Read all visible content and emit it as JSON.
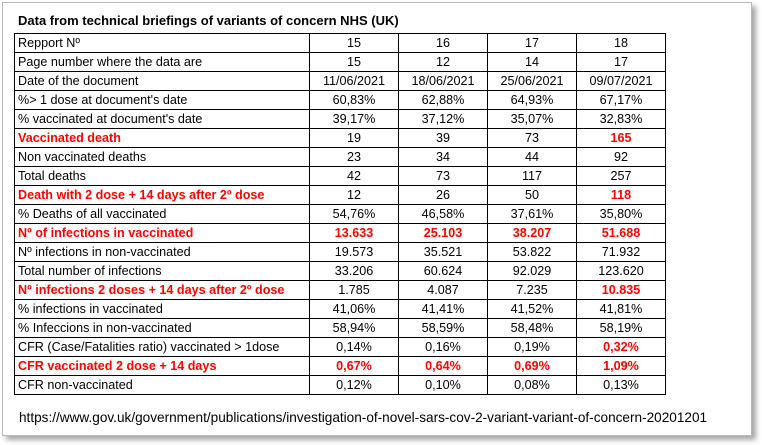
{
  "title": "Data from technical briefings of variants of concern NHS (UK)",
  "source": "https://www.gov.uk/government/publications/investigation-of-novel-sars-cov-2-variant-variant-of-concern-20201201",
  "rows": [
    {
      "label": "Repport Nº",
      "values": [
        "15",
        "16",
        "17",
        "18"
      ],
      "highlight": false,
      "red": []
    },
    {
      "label": "Page number where the data are",
      "values": [
        "15",
        "12",
        "14",
        "17"
      ],
      "highlight": false,
      "red": []
    },
    {
      "label": "Date of the document",
      "values": [
        "11/06/2021",
        "18/06/2021",
        "25/06/2021",
        "09/07/2021"
      ],
      "highlight": false,
      "red": []
    },
    {
      "label": "%> 1 dose at document's date",
      "values": [
        "60,83%",
        "62,88%",
        "64,93%",
        "67,17%"
      ],
      "highlight": false,
      "red": []
    },
    {
      "label": "% vaccinated at document's date",
      "values": [
        "39,17%",
        "37,12%",
        "35,07%",
        "32,83%"
      ],
      "highlight": false,
      "red": []
    },
    {
      "label": "Vaccinated death",
      "values": [
        "19",
        "39",
        "73",
        "165"
      ],
      "highlight": true,
      "red": [
        3
      ]
    },
    {
      "label": "Non vaccinated deaths",
      "values": [
        "23",
        "34",
        "44",
        "92"
      ],
      "highlight": false,
      "red": []
    },
    {
      "label": "Total deaths",
      "values": [
        "42",
        "73",
        "117",
        "257"
      ],
      "highlight": false,
      "red": []
    },
    {
      "label": "Death with 2 dose + 14 days after 2º dose",
      "values": [
        "12",
        "26",
        "50",
        "118"
      ],
      "highlight": true,
      "red": [
        3
      ]
    },
    {
      "label": "% Deaths of all vaccinated",
      "values": [
        "54,76%",
        "46,58%",
        "37,61%",
        "35,80%"
      ],
      "highlight": false,
      "red": []
    },
    {
      "label": "Nº of infections in vaccinated",
      "values": [
        "13.633",
        "25.103",
        "38.207",
        "51.688"
      ],
      "highlight": true,
      "red": [
        0,
        1,
        2,
        3
      ]
    },
    {
      "label": "Nº infections in non-vaccinated",
      "values": [
        "19.573",
        "35.521",
        "53.822",
        "71.932"
      ],
      "highlight": false,
      "red": []
    },
    {
      "label": "Total number of infections",
      "values": [
        "33.206",
        "60.624",
        "92.029",
        "123.620"
      ],
      "highlight": false,
      "red": []
    },
    {
      "label": "Nº infections 2 doses + 14 days after 2º dose",
      "values": [
        "1.785",
        "4.087",
        "7.235",
        "10.835"
      ],
      "highlight": true,
      "red": [
        3
      ]
    },
    {
      "label": "% infections in vaccinated",
      "values": [
        "41,06%",
        "41,41%",
        "41,52%",
        "41,81%"
      ],
      "highlight": false,
      "red": []
    },
    {
      "label": "% Infeccions in non-vaccinated",
      "values": [
        "58,94%",
        "58,59%",
        "58,48%",
        "58,19%"
      ],
      "highlight": false,
      "red": []
    },
    {
      "label": "CFR (Case/Fatalities ratio) vaccinated > 1dose",
      "values": [
        "0,14%",
        "0,16%",
        "0,19%",
        "0,32%"
      ],
      "highlight": false,
      "red": [
        3
      ]
    },
    {
      "label": "CFR vaccinated  2 dose + 14 days",
      "values": [
        "0,67%",
        "0,64%",
        "0,69%",
        "1,09%"
      ],
      "highlight": true,
      "red": [
        0,
        1,
        2,
        3
      ]
    },
    {
      "label": "CFR non-vaccinated",
      "values": [
        "0,12%",
        "0,10%",
        "0,08%",
        "0,13%"
      ],
      "highlight": false,
      "red": []
    }
  ]
}
